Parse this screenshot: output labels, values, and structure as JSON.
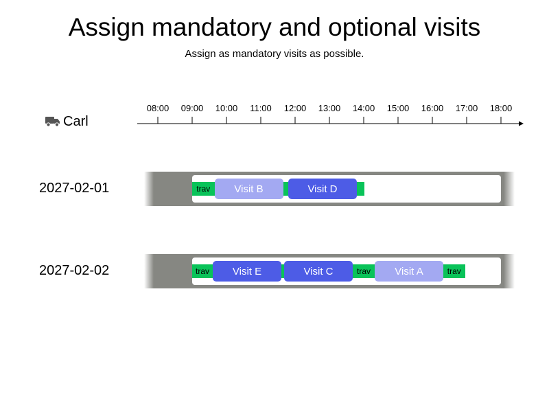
{
  "title": "Assign mandatory and optional visits",
  "subtitle": "Assign as mandatory visits as possible.",
  "resource": {
    "name": "Carl",
    "icon": "truck-icon"
  },
  "axis": {
    "start_hour": 7,
    "end_hour": 18.7,
    "ticks": [
      "08:00",
      "09:00",
      "10:00",
      "11:00",
      "12:00",
      "13:00",
      "14:00",
      "15:00",
      "16:00",
      "17:00",
      "18:00"
    ]
  },
  "colors": {
    "lane": "#868782",
    "travel": "#09c359",
    "mandatory": "#4d5ce6",
    "optional": "#a3a9f2"
  },
  "days": [
    {
      "date": "2027-02-01",
      "window": {
        "start": 9.0,
        "end": 18.0
      },
      "segments": [
        {
          "type": "trav",
          "label": "trav",
          "start": 9.0,
          "end": 9.65
        },
        {
          "type": "optional",
          "label": "Visit B",
          "start": 9.65,
          "end": 11.65
        },
        {
          "type": "trav",
          "label": "",
          "start": 11.65,
          "end": 11.8
        },
        {
          "type": "mandatory",
          "label": "Visit D",
          "start": 11.8,
          "end": 13.8
        },
        {
          "type": "trav",
          "label": "",
          "start": 13.8,
          "end": 14.02
        }
      ]
    },
    {
      "date": "2027-02-02",
      "window": {
        "start": 9.0,
        "end": 18.0
      },
      "segments": [
        {
          "type": "trav",
          "label": "trav",
          "start": 9.0,
          "end": 9.6
        },
        {
          "type": "mandatory",
          "label": "Visit E",
          "start": 9.6,
          "end": 11.6
        },
        {
          "type": "trav",
          "label": "",
          "start": 11.6,
          "end": 11.68
        },
        {
          "type": "mandatory",
          "label": "Visit C",
          "start": 11.68,
          "end": 13.68
        },
        {
          "type": "trav",
          "label": "trav",
          "start": 13.68,
          "end": 14.32
        },
        {
          "type": "optional",
          "label": "Visit A",
          "start": 14.32,
          "end": 16.32
        },
        {
          "type": "trav",
          "label": "trav",
          "start": 16.32,
          "end": 16.95
        }
      ]
    }
  ]
}
